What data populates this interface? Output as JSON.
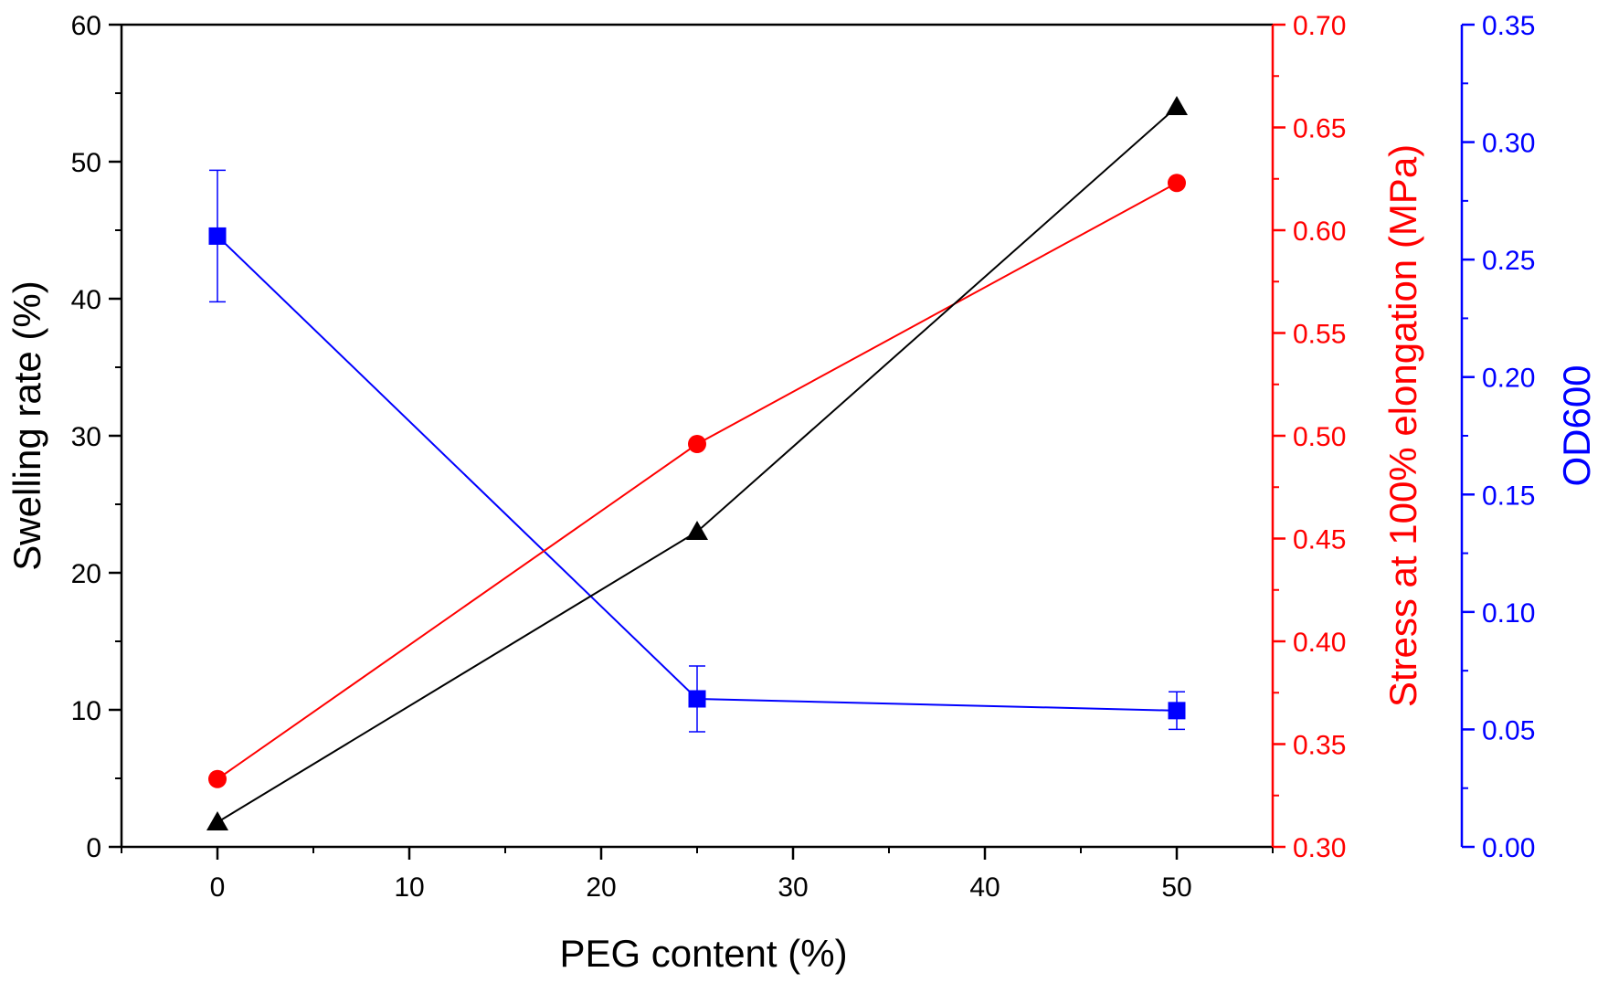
{
  "chart_data": {
    "type": "line",
    "x": [
      0,
      25,
      50
    ],
    "xlabel": "PEG content (%)",
    "xlim": [
      -5,
      55
    ],
    "xticks": [
      0,
      10,
      20,
      30,
      40,
      50
    ],
    "axes": {
      "left": {
        "label": "Swelling rate (%)",
        "color": "#000000",
        "ylim": [
          0,
          60
        ],
        "ticks": [
          0,
          10,
          20,
          30,
          40,
          50,
          60
        ],
        "tick_labels": [
          "0",
          "10",
          "20",
          "30",
          "40",
          "50",
          "60"
        ]
      },
      "right1": {
        "label": "Stress at 100% elongation (MPa)",
        "color": "#ff0000",
        "ylim": [
          0.3,
          0.7
        ],
        "ticks": [
          0.3,
          0.35,
          0.4,
          0.45,
          0.5,
          0.55,
          0.6,
          0.65,
          0.7
        ],
        "tick_labels": [
          "0.30",
          "0.35",
          "0.40",
          "0.45",
          "0.50",
          "0.55",
          "0.60",
          "0.65",
          "0.70"
        ]
      },
      "right2": {
        "label": "OD600",
        "color": "#0000ff",
        "ylim": [
          0.0,
          0.35
        ],
        "ticks": [
          0.0,
          0.05,
          0.1,
          0.15,
          0.2,
          0.25,
          0.3,
          0.35
        ],
        "tick_labels": [
          "0.00",
          "0.05",
          "0.10",
          "0.15",
          "0.20",
          "0.25",
          "0.30",
          "0.35"
        ]
      }
    },
    "series": [
      {
        "name": "Swelling rate",
        "axis": "left",
        "marker": "triangle",
        "color": "#000000",
        "values": [
          1.8,
          23.0,
          54.0
        ]
      },
      {
        "name": "Stress at 100% elongation",
        "axis": "right1",
        "marker": "circle",
        "color": "#ff0000",
        "values": [
          0.333,
          0.496,
          0.623
        ]
      },
      {
        "name": "OD600",
        "axis": "right2",
        "marker": "square",
        "color": "#0000ff",
        "values": [
          0.26,
          0.063,
          0.058
        ],
        "errors": [
          0.028,
          0.014,
          0.008
        ]
      }
    ]
  }
}
